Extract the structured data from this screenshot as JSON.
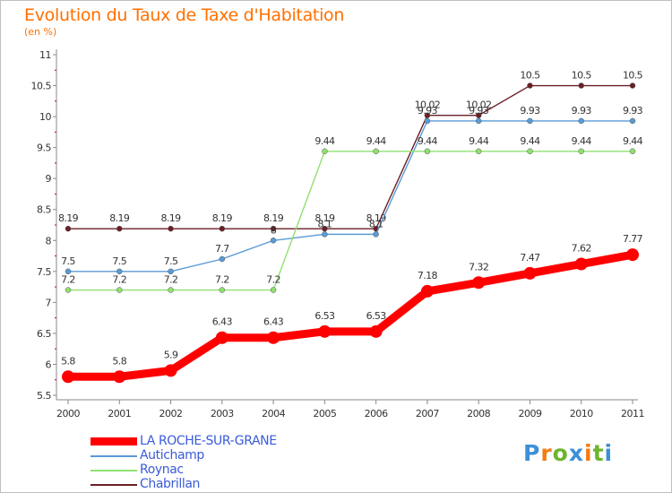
{
  "title": "Evolution du Taux de Taxe d'Habitation",
  "unit_label": "(en %)",
  "logo_text": "Proxiti",
  "colors": {
    "title": "#ff7000",
    "legend_text": "#3a5bd9",
    "axis": "#888888",
    "grid": "#e8e8e8",
    "logo_letters": [
      "#3d8fd8",
      "#f07c14",
      "#6cb52e",
      "#3d8fd8",
      "#f07c14",
      "#6cb52e",
      "#3d8fd8"
    ]
  },
  "chart_data": {
    "type": "line",
    "x": [
      "2000",
      "2001",
      "2002",
      "2003",
      "2004",
      "2005",
      "2006",
      "2007",
      "2008",
      "2009",
      "2010",
      "2011"
    ],
    "ylim": [
      5.5,
      11
    ],
    "yticks": [
      "5.5",
      "6",
      "6.5",
      "7",
      "7.5",
      "8",
      "8.5",
      "9",
      "9.5",
      "10",
      "10.5",
      "11"
    ],
    "grid": false,
    "legend_position": "bottom-left",
    "series": [
      {
        "name": "Chabrillan",
        "color": "#6b1f24",
        "values": [
          8.19,
          8.19,
          8.19,
          8.19,
          8.19,
          8.19,
          8.19,
          10.02,
          10.02,
          10.5,
          10.5,
          10.5
        ],
        "labels": [
          "8.19",
          "8.19",
          "8.19",
          "8.19",
          "8.19",
          "8.19",
          "8.19",
          "10.02",
          "10.02",
          "10.5",
          "10.5",
          "10.5"
        ]
      },
      {
        "name": "Autichamp",
        "color": "#5a9bd5",
        "values": [
          7.5,
          7.5,
          7.5,
          7.7,
          8,
          8.1,
          8.1,
          9.93,
          9.93,
          9.93,
          9.93,
          9.93
        ],
        "labels": [
          "7.5",
          "7.5",
          "7.5",
          "7.7",
          "8",
          "8.1",
          "8.1",
          "9.93",
          "9.93",
          "9.93",
          "9.93",
          "9.93"
        ]
      },
      {
        "name": "Roynac",
        "color": "#90e070",
        "values": [
          7.2,
          7.2,
          7.2,
          7.2,
          7.2,
          9.44,
          9.44,
          9.44,
          9.44,
          9.44,
          9.44,
          9.44
        ],
        "labels": [
          "7.2",
          "7.2",
          "7.2",
          "7.2",
          "7.2",
          "9.44",
          "9.44",
          "9.44",
          "9.44",
          "9.44",
          "9.44",
          "9.44"
        ]
      },
      {
        "name": "LA ROCHE-SUR-GRANE",
        "color": "#ff0000",
        "values": [
          5.8,
          5.8,
          5.9,
          6.43,
          6.43,
          6.53,
          6.53,
          7.18,
          7.32,
          7.47,
          7.62,
          7.77
        ],
        "labels": [
          "5.8",
          "5.8",
          "5.9",
          "6.43",
          "6.43",
          "6.53",
          "6.53",
          "7.18",
          "7.32",
          "7.47",
          "7.62",
          "7.77"
        ]
      }
    ]
  }
}
